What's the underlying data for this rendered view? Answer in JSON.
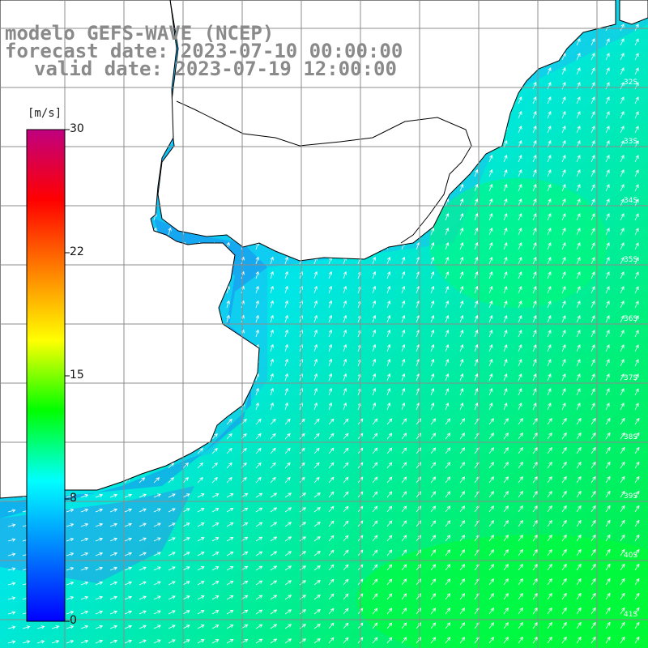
{
  "titles": {
    "line1": "modelo GEFS-WAVE (NCEP)",
    "line2": "forecast date: 2023-07-10 00:00:00",
    "line3": "valid date: 2023-07-19 12:00:00"
  },
  "colorbar": {
    "unit": "[m/s]",
    "ticks": [
      "30",
      "22",
      "15",
      "8",
      "0"
    ],
    "min": 0,
    "max": 30,
    "colors": [
      "#0000ff",
      "#0080ff",
      "#00ffff",
      "#00ff00",
      "#ffff00",
      "#ff8000",
      "#ff0000",
      "#c00080"
    ]
  },
  "map": {
    "land_color": "#ffffff",
    "coast_color": "#000000",
    "grid_color": "#8c8c8c",
    "arrow_color": "#ffffff",
    "latitude_labels": [
      "32S",
      "33S",
      "34S",
      "35S",
      "36S",
      "37S",
      "38S",
      "39S",
      "40S",
      "41S"
    ]
  }
}
